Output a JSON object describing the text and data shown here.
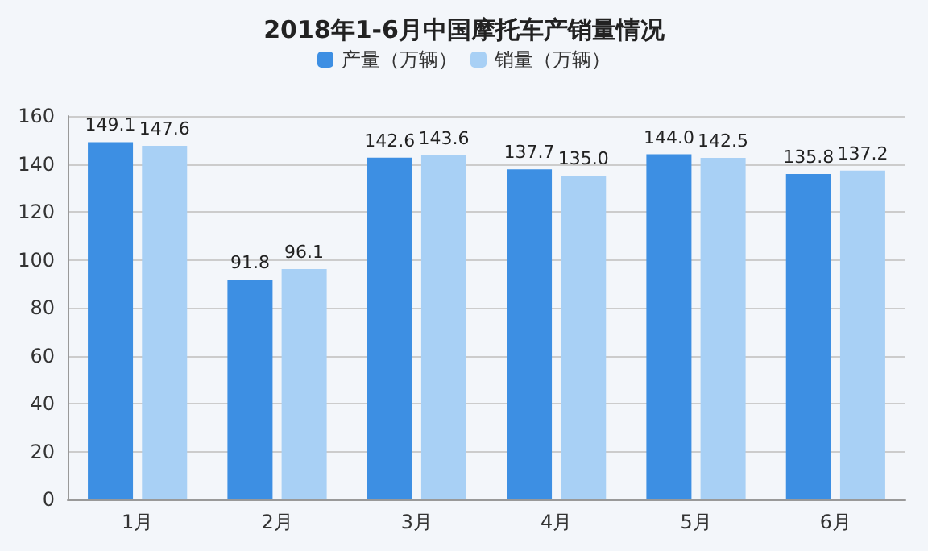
{
  "chart_data": {
    "type": "bar",
    "title": "2018年1-6月中国摩托车产销量情况",
    "categories": [
      "1月",
      "2月",
      "3月",
      "4月",
      "5月",
      "6月"
    ],
    "series": [
      {
        "name": "产量（万辆）",
        "color": "#3d8fe3",
        "values": [
          149.1,
          91.8,
          142.6,
          137.7,
          144.0,
          135.8
        ],
        "value_labels": [
          "149.1",
          "91.8",
          "142.6",
          "137.7",
          "144.0",
          "135.8"
        ]
      },
      {
        "name": "销量（万辆）",
        "color": "#a8d0f5",
        "values": [
          147.6,
          96.1,
          143.6,
          135.0,
          142.5,
          137.2
        ],
        "value_labels": [
          "147.6",
          "96.1",
          "143.6",
          "135.0",
          "142.5",
          "137.2"
        ]
      }
    ],
    "ylim": [
      0,
      160
    ],
    "yticks": [
      0,
      20,
      40,
      60,
      80,
      100,
      120,
      140,
      160
    ],
    "grid": "y",
    "legend": "top"
  }
}
